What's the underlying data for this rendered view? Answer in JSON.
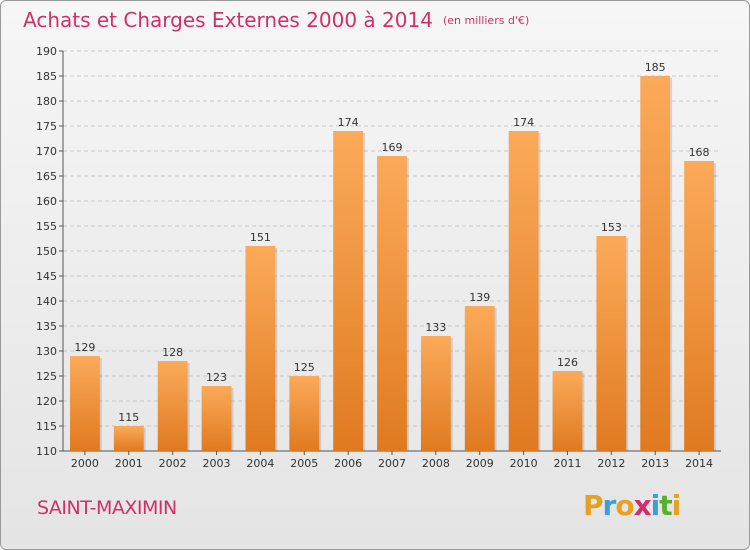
{
  "title": "Achats et Charges Externes 2000 à 2014",
  "subtitle": "(en milliers d'€)",
  "city": "SAINT-MAXIMIN",
  "brand": {
    "letters": [
      "P",
      "r",
      "o",
      "x",
      "i",
      "t",
      "i"
    ],
    "colors": [
      "#e8a020",
      "#3aa0d8",
      "#e8a020",
      "#d0306a",
      "#3aa0d8",
      "#58b030",
      "#e8a020"
    ]
  },
  "colors": {
    "bar_light": "#fbaa5a",
    "bar_dark": "#e07a20",
    "accent": "#d0306a"
  },
  "chart_data": {
    "type": "bar",
    "categories": [
      "2000",
      "2001",
      "2002",
      "2003",
      "2004",
      "2005",
      "2006",
      "2007",
      "2008",
      "2009",
      "2010",
      "2011",
      "2012",
      "2013",
      "2014"
    ],
    "values": [
      129,
      115,
      128,
      123,
      151,
      125,
      174,
      169,
      133,
      139,
      174,
      126,
      153,
      185,
      168
    ],
    "ylim": [
      110,
      190
    ],
    "yticks": [
      110,
      115,
      120,
      125,
      130,
      135,
      140,
      145,
      150,
      155,
      160,
      165,
      170,
      175,
      180,
      185,
      190
    ],
    "grid": true
  }
}
